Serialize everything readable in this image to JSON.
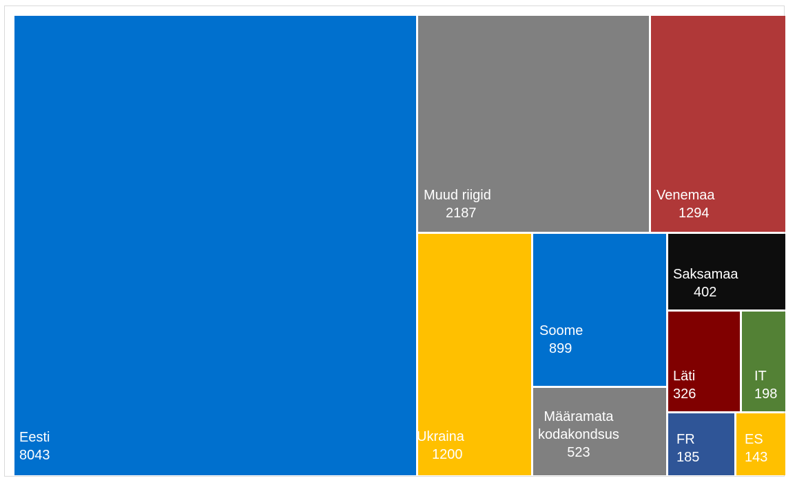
{
  "chart_data": {
    "type": "treemap",
    "title": "",
    "items": [
      {
        "name": "Eesti",
        "value": 8043,
        "value_label": "8043",
        "color": "#0070CE"
      },
      {
        "name": "Muud riigid",
        "value": 2187,
        "value_label": "2187",
        "color": "#808080"
      },
      {
        "name": "Venemaa",
        "value": 1294,
        "value_label": "1294",
        "color": "#B03838"
      },
      {
        "name": "Ukraina",
        "value": 1200,
        "value_label": "1200",
        "color": "#FFC000"
      },
      {
        "name": "Soome",
        "value": 899,
        "value_label": "899",
        "color": "#0070CE"
      },
      {
        "name": "Määramata kodakondsus",
        "name_lines": [
          "Määramata",
          "kodakondsus"
        ],
        "value": 523,
        "value_label": "523",
        "color": "#808080"
      },
      {
        "name": "Saksamaa",
        "value": 402,
        "value_label": "402",
        "color": "#0D0D0D"
      },
      {
        "name": "Läti",
        "value": 326,
        "value_label": "326",
        "color": "#800000"
      },
      {
        "name": "IT",
        "value": 198,
        "value_label": "198",
        "color": "#538135"
      },
      {
        "name": "FR",
        "value": 185,
        "value_label": "185",
        "color": "#2F5597"
      },
      {
        "name": "ES",
        "value": 143,
        "value_label": "143",
        "color": "#FFC000"
      }
    ]
  }
}
